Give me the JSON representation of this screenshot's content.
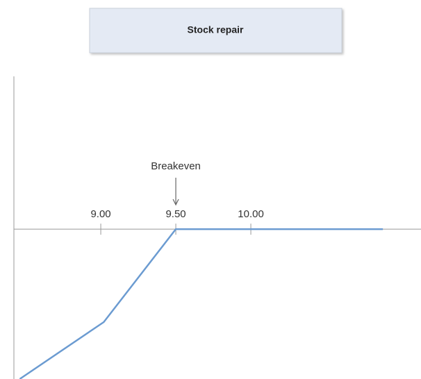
{
  "chart_data": {
    "type": "line",
    "title": "Stock repair",
    "x": [
      8.46,
      9.02,
      9.5,
      10.88
    ],
    "values": [
      -1.0,
      -0.62,
      0,
      0
    ],
    "color": "#6b9bd1",
    "xlim": [
      8.421,
      11.134
    ],
    "ylim": [
      -1.0,
      1.02
    ],
    "xticks": [
      {
        "value": 9,
        "label": "9.00"
      },
      {
        "value": 9.5,
        "label": "9.50"
      },
      {
        "value": 10,
        "label": "10.00"
      }
    ],
    "annotation": {
      "text": "Breakeven",
      "x": 9.5
    }
  }
}
